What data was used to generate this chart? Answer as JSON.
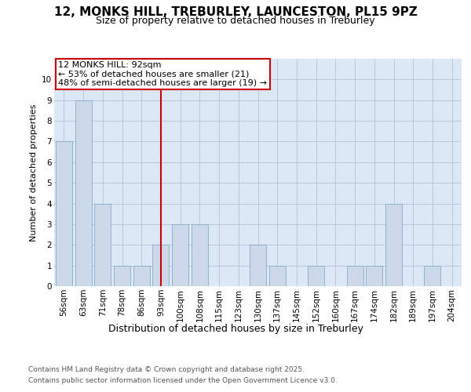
{
  "title_line1": "12, MONKS HILL, TREBURLEY, LAUNCESTON, PL15 9PZ",
  "title_line2": "Size of property relative to detached houses in Treburley",
  "xlabel": "Distribution of detached houses by size in Treburley",
  "ylabel": "Number of detached properties",
  "footnote_line1": "Contains HM Land Registry data © Crown copyright and database right 2025.",
  "footnote_line2": "Contains public sector information licensed under the Open Government Licence v3.0.",
  "bin_labels": [
    "56sqm",
    "63sqm",
    "71sqm",
    "78sqm",
    "86sqm",
    "93sqm",
    "100sqm",
    "108sqm",
    "115sqm",
    "123sqm",
    "130sqm",
    "137sqm",
    "145sqm",
    "152sqm",
    "160sqm",
    "167sqm",
    "174sqm",
    "182sqm",
    "189sqm",
    "197sqm",
    "204sqm"
  ],
  "bin_values": [
    7,
    9,
    4,
    1,
    1,
    2,
    3,
    3,
    0,
    0,
    2,
    1,
    0,
    1,
    0,
    1,
    1,
    4,
    0,
    1,
    0
  ],
  "bar_color": "#ccd9e8",
  "bar_edge_color": "#8aaac8",
  "vline_x_index": 5,
  "vline_color": "#cc0000",
  "annotation_box_text": "12 MONKS HILL: 92sqm\n← 53% of detached houses are smaller (21)\n48% of semi-detached houses are larger (19) →",
  "annotation_box_color": "#cc0000",
  "annotation_box_facecolor": "#ffffff",
  "ylim": [
    0,
    11
  ],
  "yticks": [
    0,
    1,
    2,
    3,
    4,
    5,
    6,
    7,
    8,
    9,
    10,
    11
  ],
  "grid_color": "#b8c8dc",
  "bg_color": "#dce8f5",
  "fig_bg_color": "#ffffff",
  "title_fontsize": 11,
  "subtitle_fontsize": 9,
  "xlabel_fontsize": 9,
  "ylabel_fontsize": 8,
  "tick_fontsize": 7.5,
  "footnote_fontsize": 6.5,
  "annotation_fontsize": 8
}
